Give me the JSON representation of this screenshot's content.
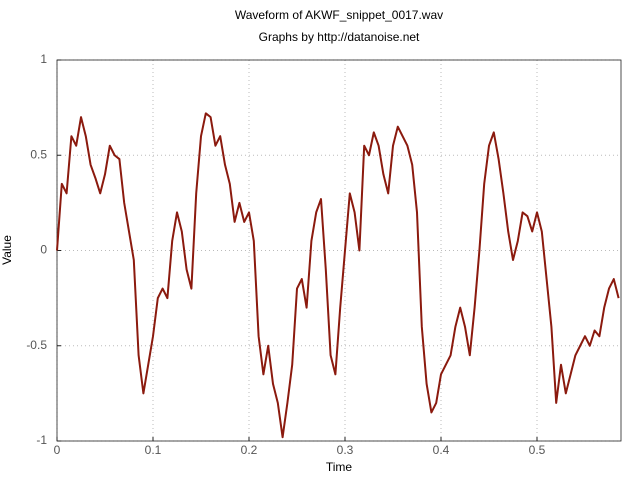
{
  "chart_data": {
    "type": "line",
    "title": "Waveform of AKWF_snippet_0017.wav",
    "subtitle": "Graphs by http://datanoise.net",
    "x_label": "Time",
    "y_label": "Value",
    "color": "#8b1a0e",
    "grid": true,
    "xlim": [
      0,
      0.5875
    ],
    "ylim": [
      -1,
      1
    ],
    "xticks": [
      0,
      0.1,
      0.2,
      0.3,
      0.4,
      0.5
    ],
    "yticks": [
      -1,
      -0.5,
      0,
      0.5,
      1
    ],
    "x": [
      0,
      0.005,
      0.01,
      0.015,
      0.02,
      0.025,
      0.03,
      0.035,
      0.04,
      0.045,
      0.05,
      0.055,
      0.06,
      0.065,
      0.07,
      0.075,
      0.08,
      0.085,
      0.09,
      0.095,
      0.1,
      0.105,
      0.11,
      0.115,
      0.12,
      0.125,
      0.13,
      0.135,
      0.14,
      0.145,
      0.15,
      0.155,
      0.16,
      0.165,
      0.17,
      0.175,
      0.18,
      0.185,
      0.19,
      0.195,
      0.2,
      0.205,
      0.21,
      0.215,
      0.22,
      0.225,
      0.23,
      0.235,
      0.24,
      0.245,
      0.25,
      0.255,
      0.26,
      0.265,
      0.27,
      0.275,
      0.28,
      0.285,
      0.29,
      0.295,
      0.3,
      0.305,
      0.31,
      0.315,
      0.32,
      0.325,
      0.33,
      0.335,
      0.34,
      0.345,
      0.35,
      0.355,
      0.36,
      0.365,
      0.37,
      0.375,
      0.38,
      0.385,
      0.39,
      0.395,
      0.4,
      0.405,
      0.41,
      0.415,
      0.42,
      0.425,
      0.43,
      0.435,
      0.44,
      0.445,
      0.45,
      0.455,
      0.46,
      0.465,
      0.47,
      0.475,
      0.48,
      0.485,
      0.49,
      0.495,
      0.5,
      0.505,
      0.51,
      0.515,
      0.52,
      0.525,
      0.53,
      0.535,
      0.54,
      0.545,
      0.55,
      0.555,
      0.56,
      0.565,
      0.57,
      0.575,
      0.58,
      0.585
    ],
    "values": [
      0,
      0.35,
      0.3,
      0.6,
      0.55,
      0.7,
      0.6,
      0.45,
      0.38,
      0.3,
      0.4,
      0.55,
      0.5,
      0.48,
      0.25,
      0.1,
      -0.05,
      -0.55,
      -0.75,
      -0.6,
      -0.45,
      -0.25,
      -0.2,
      -0.25,
      0.05,
      0.2,
      0.1,
      -0.1,
      -0.2,
      0.3,
      0.6,
      0.72,
      0.7,
      0.55,
      0.6,
      0.45,
      0.35,
      0.15,
      0.25,
      0.15,
      0.2,
      0.05,
      -0.45,
      -0.65,
      -0.5,
      -0.7,
      -0.8,
      -0.98,
      -0.8,
      -0.6,
      -0.2,
      -0.15,
      -0.3,
      0.05,
      0.2,
      0.27,
      -0.1,
      -0.55,
      -0.65,
      -0.3,
      0,
      0.3,
      0.2,
      0,
      0.55,
      0.5,
      0.62,
      0.55,
      0.4,
      0.3,
      0.55,
      0.65,
      0.6,
      0.55,
      0.45,
      0.2,
      -0.4,
      -0.7,
      -0.85,
      -0.8,
      -0.65,
      -0.6,
      -0.55,
      -0.4,
      -0.3,
      -0.4,
      -0.55,
      -0.3,
      0,
      0.35,
      0.55,
      0.62,
      0.48,
      0.3,
      0.1,
      -0.05,
      0.05,
      0.2,
      0.18,
      0.1,
      0.2,
      0.1,
      -0.15,
      -0.4,
      -0.8,
      -0.6,
      -0.75,
      -0.65,
      -0.55,
      -0.5,
      -0.45,
      -0.5,
      -0.42,
      -0.45,
      -0.3,
      -0.2,
      -0.15,
      -0.25
    ]
  }
}
